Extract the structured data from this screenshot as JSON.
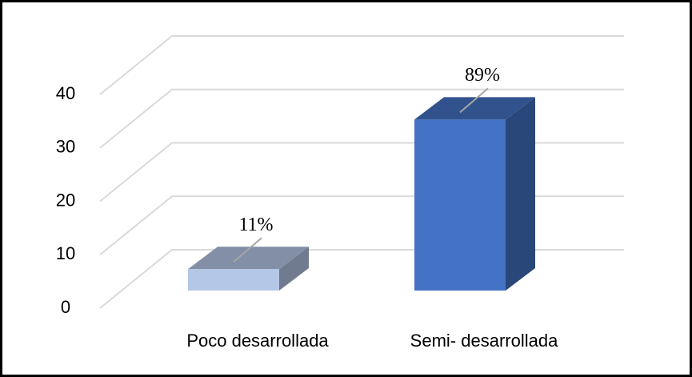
{
  "chart_data": {
    "type": "bar3d",
    "categories": [
      "Poco desarrollada",
      "Semi- desarrollada"
    ],
    "values": [
      4,
      32
    ],
    "value_labels": [
      "11%",
      "89%"
    ],
    "colors": [
      "#b4c7e7",
      "#4472c4"
    ],
    "ylim": [
      0,
      40
    ],
    "yticks": [
      0,
      10,
      20,
      30,
      40
    ],
    "grid": true
  }
}
